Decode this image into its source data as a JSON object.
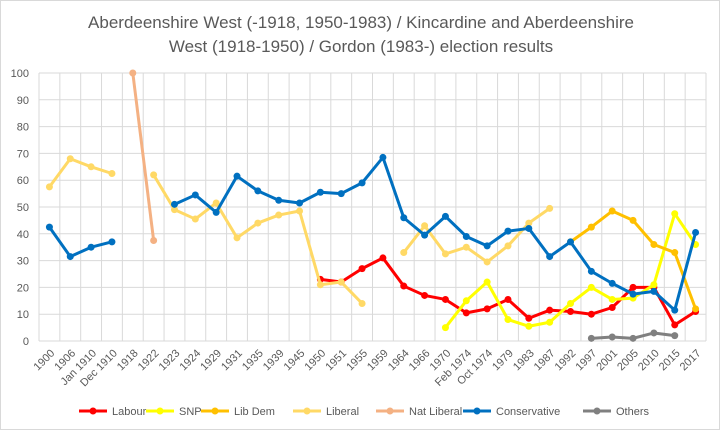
{
  "chart_data": {
    "type": "line",
    "title": "Aberdeenshire West (-1918, 1950-1983) / Kincardine and Aberdeenshire West (1918-1950) / Gordon (1983-) election results",
    "title_lines": [
      "Aberdeenshire West (-1918, 1950-1983) / Kincardine and Aberdeenshire",
      "West (1918-1950) / Gordon (1983-) election results"
    ],
    "xlabel": "",
    "ylabel": "",
    "ylim": [
      0,
      100
    ],
    "yticks": [
      0,
      10,
      20,
      30,
      40,
      50,
      60,
      70,
      80,
      90,
      100
    ],
    "grid": true,
    "legend": "bottom",
    "categories": [
      "1900",
      "1906",
      "Jan 1910",
      "Dec 1910",
      "1918",
      "1922",
      "1923",
      "1924",
      "1929",
      "1931",
      "1935",
      "1939",
      "1945",
      "1950",
      "1951",
      "1955",
      "1959",
      "1964",
      "1966",
      "1970",
      "Feb 1974",
      "Oct 1974",
      "1979",
      "1983",
      "1987",
      "1992",
      "1997",
      "2001",
      "2005",
      "2010",
      "2015",
      "2017"
    ],
    "series": [
      {
        "name": "Labour",
        "color": "#ff0000",
        "values": [
          null,
          null,
          null,
          null,
          null,
          null,
          null,
          null,
          null,
          null,
          null,
          null,
          null,
          23,
          22,
          27,
          31,
          20.5,
          17,
          15.5,
          10.5,
          12,
          15.5,
          8.5,
          11.5,
          11,
          10,
          12.5,
          20,
          20,
          6,
          11
        ]
      },
      {
        "name": "SNP",
        "color": "#ffff00",
        "values": [
          null,
          null,
          null,
          null,
          null,
          null,
          null,
          null,
          null,
          null,
          null,
          null,
          null,
          null,
          null,
          null,
          null,
          null,
          null,
          5,
          15,
          22,
          8,
          5.5,
          7,
          14,
          20,
          15.5,
          16,
          21,
          47.5,
          36
        ]
      },
      {
        "name": "Lib Dem",
        "color": "#ffc000",
        "values": [
          null,
          null,
          null,
          null,
          null,
          null,
          null,
          null,
          null,
          null,
          null,
          null,
          null,
          null,
          null,
          null,
          null,
          null,
          null,
          null,
          null,
          null,
          null,
          null,
          null,
          37,
          42.5,
          48.5,
          45,
          36,
          33,
          12
        ]
      },
      {
        "name": "Liberal",
        "color": "#ffd966",
        "values": [
          57.5,
          68,
          65,
          62.5,
          null,
          62,
          49,
          45.5,
          51.5,
          38.5,
          44,
          47,
          48.5,
          21,
          22,
          14,
          null,
          33,
          43,
          32.5,
          35,
          29.5,
          35.5,
          44,
          49.5,
          null,
          null,
          null,
          null,
          null,
          null,
          null
        ]
      },
      {
        "name": "Nat Liberal",
        "color": "#f4b183",
        "values": [
          null,
          null,
          null,
          null,
          100,
          37.5,
          null,
          null,
          null,
          null,
          null,
          null,
          null,
          null,
          null,
          null,
          null,
          null,
          null,
          null,
          null,
          null,
          null,
          null,
          null,
          null,
          null,
          null,
          null,
          null,
          null,
          null
        ]
      },
      {
        "name": "Conservative",
        "color": "#0070c0",
        "values": [
          42.5,
          31.5,
          35,
          37,
          null,
          null,
          51,
          54.5,
          48,
          61.5,
          56,
          52.5,
          51.5,
          55.5,
          55,
          59,
          68.5,
          46,
          39.5,
          46.5,
          39,
          35.5,
          41,
          42,
          31.5,
          37,
          26,
          21.5,
          17.5,
          18.5,
          11.5,
          40.5
        ]
      },
      {
        "name": "Others",
        "color": "#808080",
        "values": [
          null,
          null,
          null,
          null,
          null,
          null,
          null,
          null,
          null,
          null,
          null,
          null,
          null,
          null,
          null,
          null,
          null,
          null,
          null,
          null,
          null,
          null,
          null,
          null,
          null,
          null,
          1,
          1.5,
          1,
          3,
          2,
          null
        ]
      }
    ]
  }
}
